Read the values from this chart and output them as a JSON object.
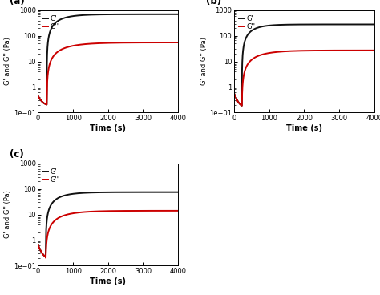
{
  "panels": [
    {
      "label": "(a)",
      "G_prime_end": 700,
      "G_dprime_end": 55,
      "rise_rate_prime": 0.0025,
      "rise_rate_dprime": 0.0018,
      "dip_time": 250,
      "dip_val": 0.18,
      "initial_val_prime": 0.45,
      "initial_val_dprime": 0.45
    },
    {
      "label": "(b)",
      "G_prime_end": 280,
      "G_dprime_end": 27,
      "rise_rate_prime": 0.003,
      "rise_rate_dprime": 0.002,
      "dip_time": 220,
      "dip_val": 0.15,
      "initial_val_prime": 0.55,
      "initial_val_dprime": 0.55
    },
    {
      "label": "(c)",
      "G_prime_end": 75,
      "G_dprime_end": 14,
      "rise_rate_prime": 0.0025,
      "rise_rate_dprime": 0.002,
      "dip_time": 220,
      "dip_val": 0.18,
      "initial_val_prime": 0.65,
      "initial_val_dprime": 0.65
    }
  ],
  "color_prime": "#111111",
  "color_dprime": "#cc0000",
  "xlabel": "Time (s)",
  "ylabel": "G' and G'' (Pa)",
  "xlim": [
    0,
    4000
  ],
  "ylim_log": [
    0.1,
    1000
  ],
  "xticks": [
    0,
    1000,
    2000,
    3000,
    4000
  ],
  "legend_prime": "G'",
  "legend_dprime": "G''",
  "linewidth": 1.4
}
